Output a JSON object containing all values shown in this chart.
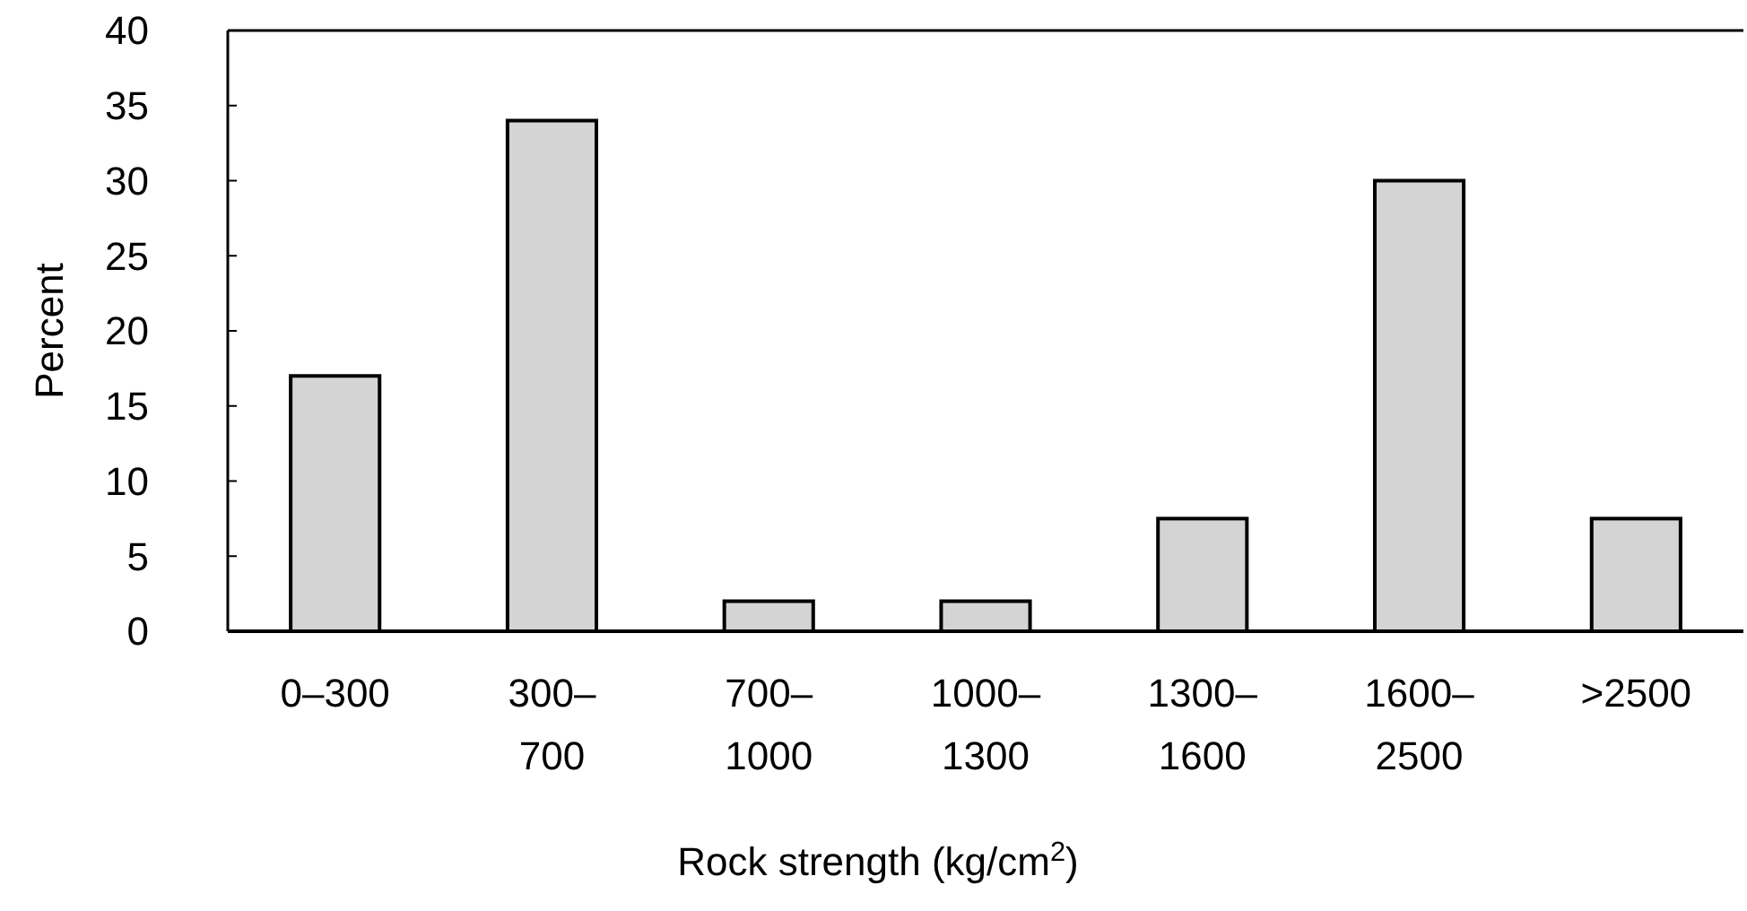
{
  "chart_data": {
    "type": "bar",
    "xlabel": "Rock strength (kg/cm$^{2}$)",
    "ylabel": "Percent",
    "categories": [
      "0–300",
      "300–\n700",
      "700–\n1000",
      "1000–\n1300",
      "1300–\n1600",
      "1600–\n2500",
      ">2500"
    ],
    "values": [
      17,
      34,
      2,
      2,
      7.5,
      30,
      7.5
    ],
    "color": "#d4d4d4",
    "ylim": [
      0,
      40
    ],
    "yticks": [
      0,
      5,
      10,
      15,
      20,
      25,
      30,
      35,
      40
    ],
    "grid": false
  }
}
